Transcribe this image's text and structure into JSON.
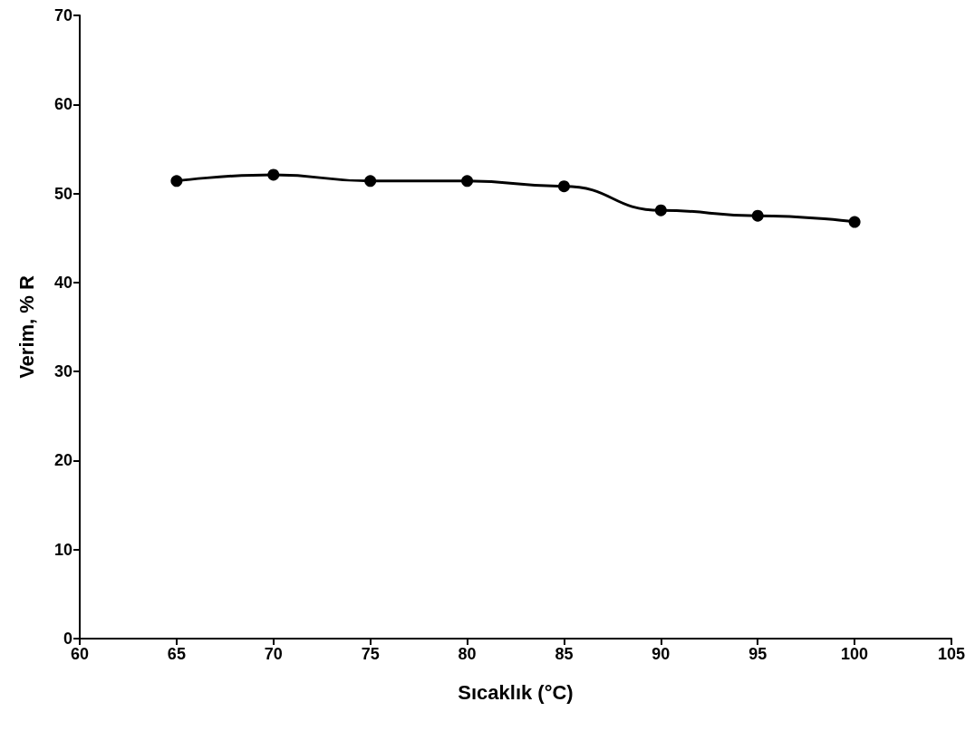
{
  "chart_data": {
    "type": "line",
    "xlabel": "Sıcaklık (°C)",
    "ylabel": "Verim, % R",
    "x": [
      65,
      70,
      75,
      80,
      85,
      90,
      95,
      100
    ],
    "series": [
      {
        "color": "#000000",
        "values": [
          51.4,
          52.1,
          51.4,
          51.4,
          50.8,
          48.1,
          47.5,
          46.8
        ]
      }
    ],
    "xlim": [
      60,
      105
    ],
    "xticks": [
      60,
      65,
      70,
      75,
      80,
      85,
      90,
      95,
      100,
      105
    ],
    "ylim": [
      0,
      70
    ],
    "yticks": [
      0,
      10,
      20,
      30,
      40,
      50,
      60,
      70
    ],
    "marker": "circle",
    "line_style": "solid"
  }
}
